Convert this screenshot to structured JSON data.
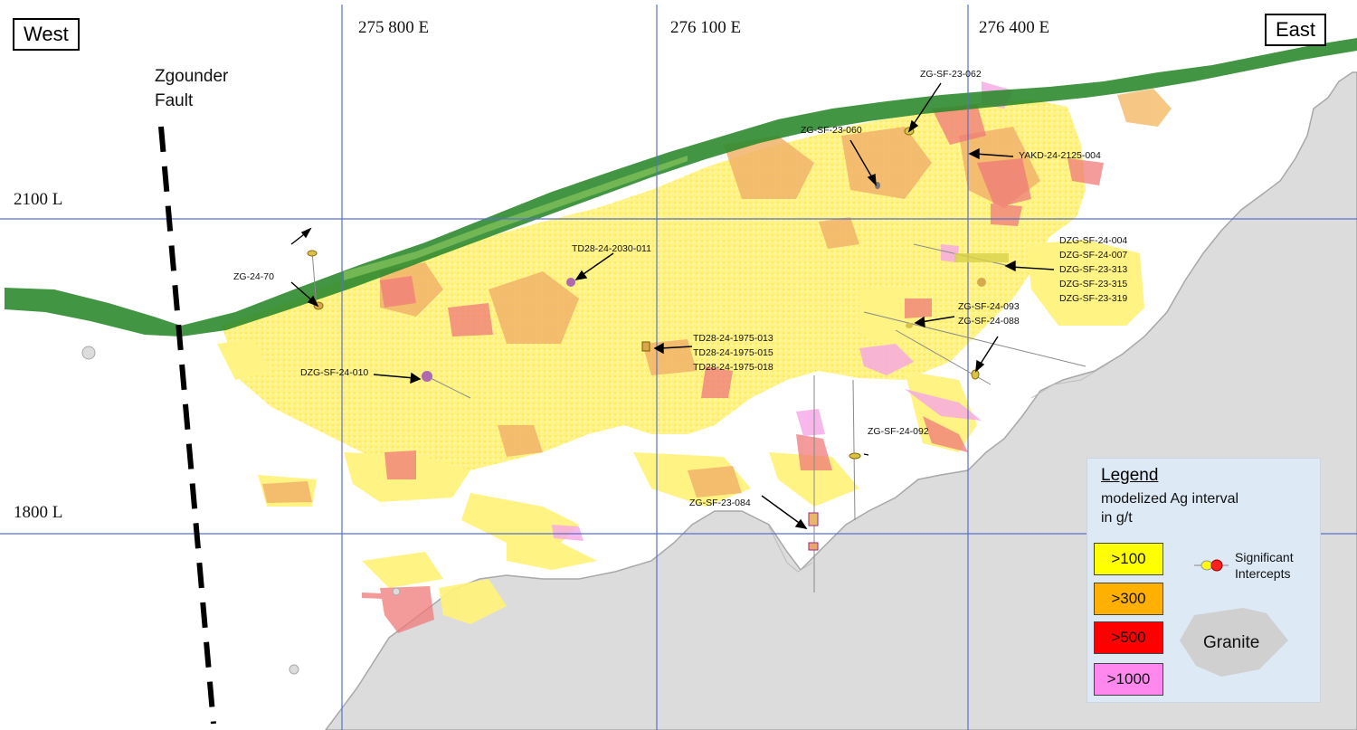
{
  "orientation": {
    "west": "West",
    "east": "East"
  },
  "eastings": [
    "275 800 E",
    "276 100 E",
    "276 400 E"
  ],
  "levels": [
    "2100 L",
    "1800 L"
  ],
  "fault": {
    "line1": "Zgounder",
    "line2": "Fault"
  },
  "drillholes": {
    "zg_sf_23_062": "ZG-SF-23-062",
    "zg_sf_23_060": "ZG-SF-23-060",
    "yakd_24_2125_004": "YAKD-24-2125-004",
    "td28_24_2030_011": "TD28-24-2030-011",
    "zg_24_70": "ZG-24-70",
    "dzg_group": [
      "DZG-SF-24-004",
      "DZG-SF-24-007",
      "DZG-SF-23-313",
      "DZG-SF-23-315",
      "DZG-SF-23-319"
    ],
    "zg_sf_093_088": [
      "ZG-SF-24-093",
      "ZG-SF-24-088"
    ],
    "td28_1975": [
      "TD28-24-1975-013",
      "TD28-24-1975-015",
      "TD28-24-1975-018"
    ],
    "dzg_sf_24_010": "DZG-SF-24-010",
    "zg_sf_24_092": "ZG-SF-24-092",
    "zg_sf_23_084": "ZG-SF-23-084"
  },
  "legend": {
    "title": "Legend",
    "subtitle_line1": "modelized Ag interval",
    "subtitle_line2": "in g/t",
    "classes": [
      {
        "label": ">100",
        "color": "#ffff00"
      },
      {
        "label": ">300",
        "color": "#ffb000"
      },
      {
        "label": ">500",
        "color": "#ff0000"
      },
      {
        "label": ">1000",
        "color": "#ff88ee"
      }
    ],
    "intercepts_line1": "Significant",
    "intercepts_line2": "Intercepts",
    "granite": "Granite"
  },
  "colors": {
    "grid": "#5a6fd0",
    "surface_green": "#2e8a2e",
    "granite": "#dcdcdc",
    "mineralization_yellow": "#fff27a",
    "mineralization_orange": "#f2b36a",
    "mineralization_red": "#f07a7a",
    "mineralization_pink": "#f6a6e6"
  }
}
